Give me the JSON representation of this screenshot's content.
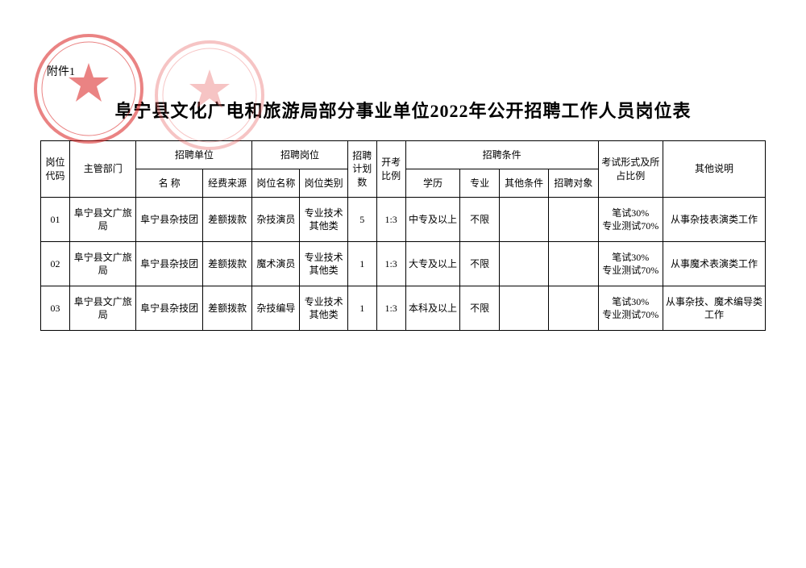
{
  "attachment_label": "附件1",
  "title": "阜宁县文化广电和旅游局部分事业单位2022年公开招聘工作人员岗位表",
  "seal_color_a": "#d91f1f",
  "seal_color_b": "#e85a5a",
  "header": {
    "code": "岗位代码",
    "dept": "主管部门",
    "unit_group": "招聘单位",
    "unit_name": "名  称",
    "fund": "经费来源",
    "post_group": "招聘岗位",
    "post_name": "岗位名称",
    "post_type": "岗位类别",
    "plan": "招聘计划数",
    "ratio": "开考比例",
    "cond_group": "招聘条件",
    "edu": "学历",
    "major": "专业",
    "other_cond": "其他条件",
    "target": "招聘对象",
    "exam": "考试形式及所占比例",
    "note": "其他说明"
  },
  "rows": [
    {
      "code": "01",
      "dept": "阜宁县文广旅局",
      "unit": "阜宁县杂技团",
      "fund": "差额拨款",
      "post_name": "杂技演员",
      "post_type": "专业技术其他类",
      "plan": "5",
      "ratio": "1:3",
      "edu": "中专及以上",
      "major": "不限",
      "other_cond": "",
      "target": "",
      "exam": "笔试30%\n专业测试70%",
      "note": "从事杂技表演类工作"
    },
    {
      "code": "02",
      "dept": "阜宁县文广旅局",
      "unit": "阜宁县杂技团",
      "fund": "差额拨款",
      "post_name": "魔术演员",
      "post_type": "专业技术其他类",
      "plan": "1",
      "ratio": "1:3",
      "edu": "大专及以上",
      "major": "不限",
      "other_cond": "",
      "target": "",
      "exam": "笔试30%\n专业测试70%",
      "note": "从事魔术表演类工作"
    },
    {
      "code": "03",
      "dept": "阜宁县文广旅局",
      "unit": "阜宁县杂技团",
      "fund": "差额拨款",
      "post_name": "杂技编导",
      "post_type": "专业技术其他类",
      "plan": "1",
      "ratio": "1:3",
      "edu": "本科及以上",
      "major": "不限",
      "other_cond": "",
      "target": "",
      "exam": "笔试30%\n专业测试70%",
      "note": "从事杂技、魔术编导类工作"
    }
  ]
}
